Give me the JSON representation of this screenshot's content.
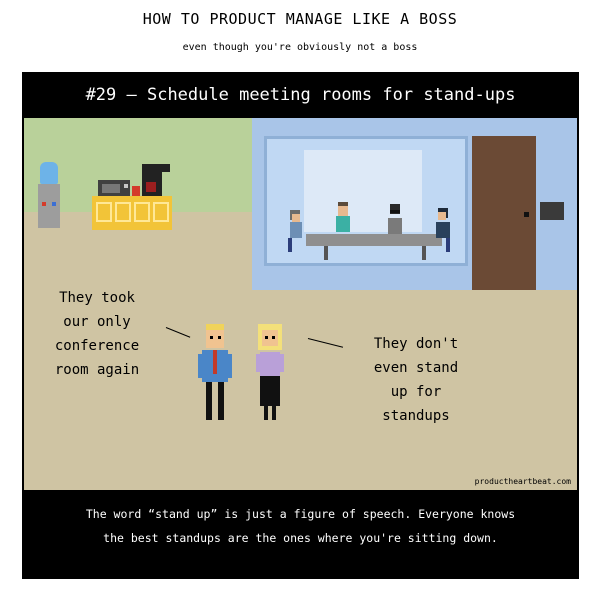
{
  "header": {
    "title": "HOW TO PRODUCT MANAGE LIKE A BOSS",
    "subtitle": "even though you're obviously not a boss"
  },
  "panel": {
    "banner": "#29 – Schedule meeting rooms for stand-ups",
    "speech_left": "They took\nour only\nconference\nroom again",
    "speech_right": "They don't\neven stand\nup for\nstandups",
    "credit": "productheartbeat.com",
    "caption_line1": "The word “stand up” is just a figure of speech. Everyone knows",
    "caption_line2": "the best standups are the ones where you're sitting down."
  },
  "colors": {
    "floor": "#cfc4a3",
    "wall_green": "#b9d19a",
    "office_blue": "#a9c5e8",
    "door": "#6b4a35",
    "counter": "#f2c438"
  }
}
